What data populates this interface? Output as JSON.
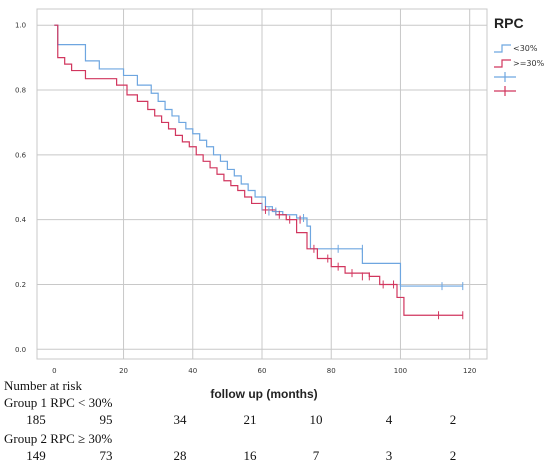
{
  "chart_data": {
    "type": "line",
    "subtype": "kaplan-meier",
    "title": "",
    "xlabel": "follow up (months)",
    "ylabel": "",
    "xlim": [
      -5,
      125
    ],
    "ylim": [
      -0.03,
      1.05
    ],
    "xticks": [
      0,
      20,
      40,
      60,
      80,
      100,
      120
    ],
    "yticks": [
      "0.0",
      "0.2",
      "0.4",
      "0.6",
      "0.8",
      "1.0"
    ],
    "grid": true,
    "legend": {
      "title": "RPC",
      "placement": "top-right",
      "entries": [
        {
          "label": "<30%",
          "color": "#6ea6e0",
          "marker": "step"
        },
        {
          "label": ">=30%",
          "color": "#d1365e",
          "marker": "step"
        },
        {
          "label": "",
          "color": "#6ea6e0",
          "marker": "censor"
        },
        {
          "label": "",
          "color": "#d1365e",
          "marker": "censor"
        }
      ]
    },
    "series": [
      {
        "name": "<30%",
        "color": "#6ea6e0",
        "x": [
          0,
          1,
          9,
          13,
          20,
          24,
          28,
          30,
          32,
          34,
          36,
          38,
          40,
          42,
          44,
          46,
          48,
          50,
          52,
          54,
          56,
          58,
          61,
          63,
          66,
          70,
          73,
          74,
          80,
          82,
          88,
          89,
          92,
          97,
          100,
          118
        ],
        "y": [
          1.0,
          0.94,
          0.89,
          0.865,
          0.845,
          0.815,
          0.79,
          0.765,
          0.74,
          0.72,
          0.7,
          0.68,
          0.665,
          0.645,
          0.625,
          0.6,
          0.58,
          0.555,
          0.535,
          0.51,
          0.49,
          0.47,
          0.44,
          0.425,
          0.415,
          0.405,
          0.38,
          0.31,
          0.31,
          0.31,
          0.31,
          0.265,
          0.265,
          0.265,
          0.195,
          0.195
        ],
        "censored_x": [
          60,
          62,
          64,
          72,
          82,
          89,
          100,
          112,
          118
        ],
        "censored_y": [
          0.44,
          0.425,
          0.425,
          0.405,
          0.31,
          0.31,
          0.195,
          0.195,
          0.195
        ]
      },
      {
        "name": ">=30%",
        "color": "#d1365e",
        "x": [
          0,
          1,
          3,
          5,
          9,
          18,
          21,
          24,
          27,
          29,
          31,
          33,
          35,
          37,
          39,
          41,
          43,
          45,
          47,
          49,
          51,
          53,
          55,
          57,
          60,
          64,
          67,
          70,
          73,
          76,
          80,
          84,
          91,
          94,
          99,
          101,
          118
        ],
        "y": [
          1.0,
          0.9,
          0.88,
          0.86,
          0.835,
          0.815,
          0.785,
          0.765,
          0.74,
          0.72,
          0.7,
          0.68,
          0.66,
          0.64,
          0.625,
          0.6,
          0.58,
          0.56,
          0.54,
          0.52,
          0.505,
          0.49,
          0.47,
          0.45,
          0.43,
          0.415,
          0.4,
          0.36,
          0.31,
          0.28,
          0.255,
          0.235,
          0.225,
          0.2,
          0.16,
          0.105,
          0.105
        ],
        "censored_x": [
          61,
          65,
          68,
          71,
          75,
          79,
          82,
          86,
          89,
          91,
          95,
          98,
          111,
          118
        ],
        "censored_y": [
          0.43,
          0.415,
          0.4,
          0.4,
          0.31,
          0.28,
          0.255,
          0.235,
          0.225,
          0.225,
          0.2,
          0.2,
          0.105,
          0.105
        ]
      }
    ]
  },
  "risk_table": {
    "title": "Number at risk",
    "groups": [
      {
        "label": "Group 1 RPC < 30%",
        "counts": [
          "185",
          "95",
          "34",
          "21",
          "10",
          "4",
          "2"
        ]
      },
      {
        "label": "Group 2 RPC ≥ 30%",
        "counts": [
          "149",
          "73",
          "28",
          "16",
          "7",
          "3",
          "2"
        ]
      }
    ]
  }
}
